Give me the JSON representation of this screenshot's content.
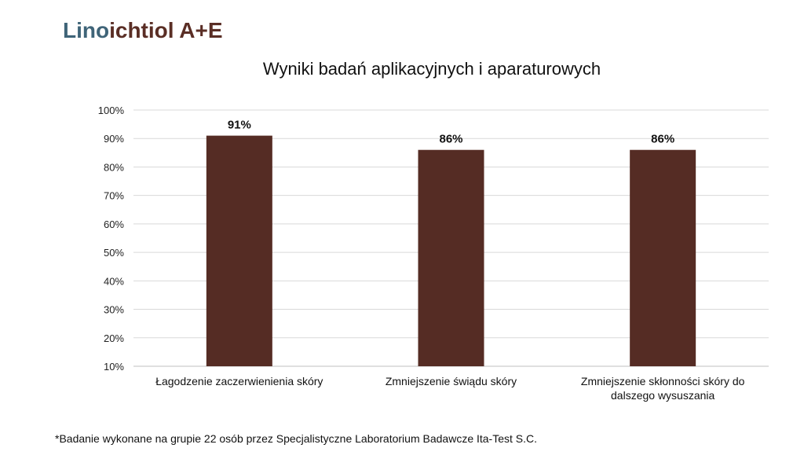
{
  "brand": {
    "part1": "Lino",
    "part2": "ichtiol A+E",
    "color_part1": "#3F6478",
    "color_part2": "#5A2E25"
  },
  "chart_data": {
    "type": "bar",
    "title": "Wyniki badań aplikacyjnych i aparaturowych",
    "categories": [
      [
        "Łagodzenie zaczerwienienia skóry"
      ],
      [
        "Zmniejszenie świądu skóry"
      ],
      [
        "Zmniejszenie skłonności skóry do",
        "dalszego wysuszania"
      ]
    ],
    "values": [
      91,
      86,
      86
    ],
    "data_labels": [
      "91%",
      "86%",
      "86%"
    ],
    "ylim": [
      10,
      100
    ],
    "yticks": [
      10,
      20,
      30,
      40,
      50,
      60,
      70,
      80,
      90,
      100
    ],
    "ytick_suffix": "%",
    "grid": true,
    "bar_color": "#552C24",
    "xlabel": "",
    "ylabel": ""
  },
  "footnote": "*Badanie wykonane na grupie 22 osób przez Specjalistyczne Laboratorium Badawcze Ita-Test S.C."
}
